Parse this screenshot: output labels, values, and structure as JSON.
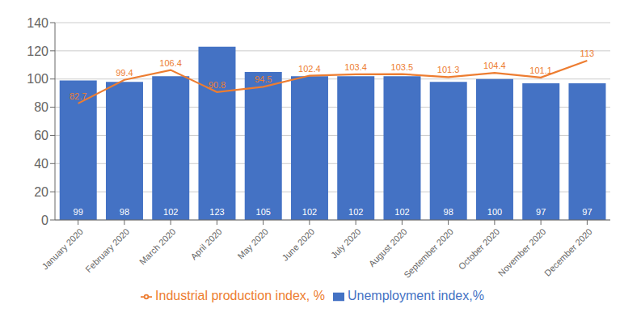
{
  "chart_data": {
    "type": "bar",
    "categories": [
      "January 2020",
      "February 2020",
      "March 2020",
      "April 2020",
      "May 2020",
      "June 2020",
      "July 2020",
      "August 2020",
      "September 2020",
      "October 2020",
      "November 2020",
      "December 2020"
    ],
    "series": [
      {
        "name": "Unemployment index,%",
        "type": "bar",
        "color": "#4472C4",
        "values": [
          99,
          98,
          102,
          123,
          105,
          102,
          102,
          102,
          98,
          100,
          97,
          97
        ]
      },
      {
        "name": "Industrial production index, %",
        "type": "line",
        "color": "#ED7D31",
        "values": [
          82.7,
          99.4,
          106.4,
          90.8,
          94.5,
          102.4,
          103.4,
          103.5,
          101.3,
          104.4,
          101.1,
          113
        ]
      }
    ],
    "ylim": [
      0,
      140
    ],
    "yticks": [
      0,
      20,
      40,
      60,
      80,
      100,
      120,
      140
    ],
    "grid": true,
    "legend": "bottom",
    "data_labels": true
  }
}
